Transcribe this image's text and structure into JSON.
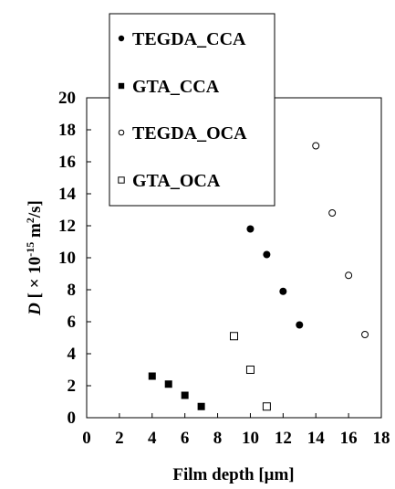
{
  "chart_data": {
    "type": "scatter",
    "xlabel": "Film depth [μm]",
    "ylabel": "D [ × 10-15 m2/s]",
    "ylabel_parts": {
      "symbol": "D",
      "pre": " [ × 10",
      "exp": "-15",
      "mid": " m",
      "exp2": "2",
      "post": "/s]"
    },
    "xlim": [
      0,
      18
    ],
    "ylim": [
      0,
      20
    ],
    "x_ticks": [
      0,
      2,
      4,
      6,
      8,
      10,
      12,
      14,
      16,
      18
    ],
    "y_ticks": [
      0,
      2,
      4,
      6,
      8,
      10,
      12,
      14,
      16,
      18,
      20
    ],
    "grid": false,
    "legend_position": "top-left",
    "series": [
      {
        "name": "TEGDA_CCA",
        "marker": "filled-circle",
        "x": [
          10,
          11,
          12,
          13
        ],
        "y": [
          11.8,
          10.2,
          7.9,
          5.8
        ]
      },
      {
        "name": "GTA_CCA",
        "marker": "filled-square",
        "x": [
          4,
          5,
          6,
          7
        ],
        "y": [
          2.6,
          2.1,
          1.4,
          0.7
        ]
      },
      {
        "name": "TEGDA_OCA",
        "marker": "open-circle",
        "x": [
          14,
          15,
          16,
          17
        ],
        "y": [
          17.0,
          12.8,
          8.9,
          5.2
        ]
      },
      {
        "name": "GTA_OCA",
        "marker": "open-square",
        "x": [
          9,
          10,
          11
        ],
        "y": [
          5.1,
          3.0,
          0.7
        ]
      }
    ]
  }
}
